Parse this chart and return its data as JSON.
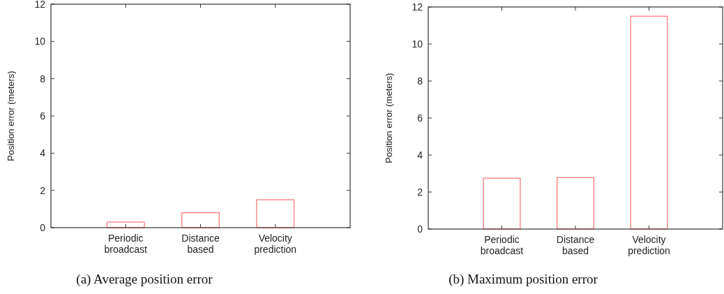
{
  "chart_data": [
    {
      "type": "bar",
      "title": "(a) Average position error",
      "ylabel": "Position error (meters)",
      "categories": [
        "Periodic broadcast",
        "Distance based",
        "Velocity prediction"
      ],
      "values": [
        0.3,
        0.8,
        1.5
      ],
      "color": "#ff7070",
      "ylim": [
        0,
        12
      ],
      "yticks": [
        0,
        2,
        4,
        6,
        8,
        10,
        12
      ]
    },
    {
      "type": "bar",
      "title": "(b) Maximum position error",
      "ylabel": "Position error (meters)",
      "categories": [
        "Periodic broadcast",
        "Distance based",
        "Velocity prediction"
      ],
      "values": [
        2.75,
        2.78,
        11.5
      ],
      "color": "#ff7070",
      "ylim": [
        0,
        12
      ],
      "yticks": [
        0,
        2,
        4,
        6,
        8,
        10,
        12
      ]
    }
  ]
}
